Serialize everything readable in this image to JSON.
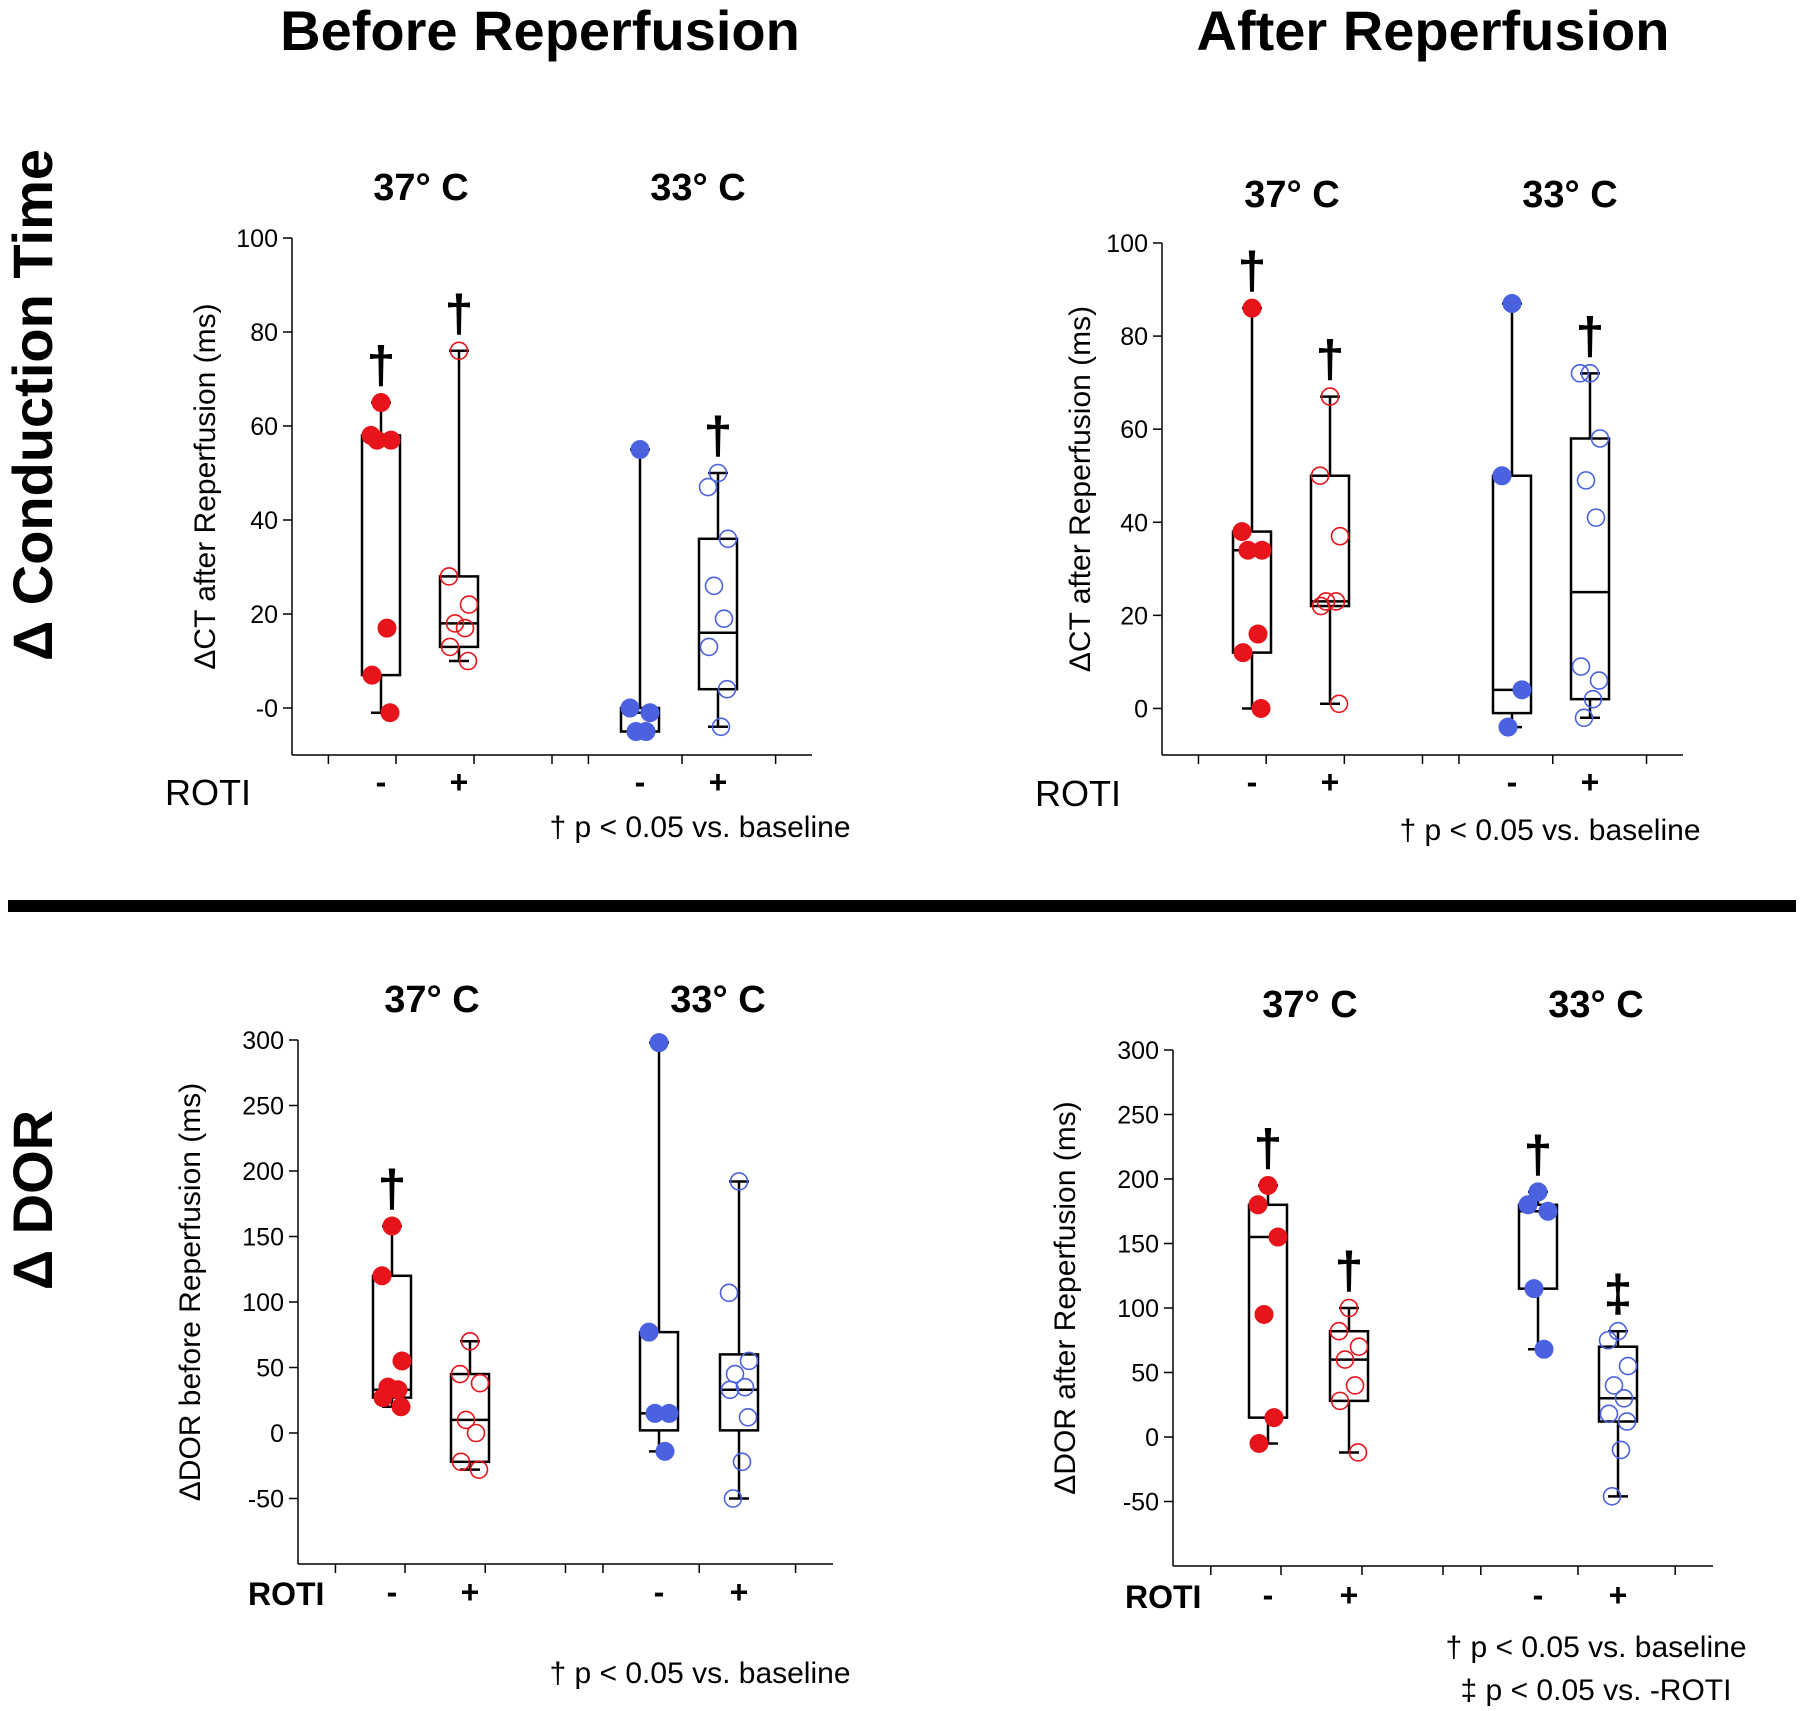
{
  "titles": {
    "before": "Before Reperfusion",
    "after": "After Reperfusion"
  },
  "row_labels": {
    "ct": "Δ Conduction Time",
    "dor": "Δ DOR"
  },
  "legend": {
    "dagger": "† p < 0.05 vs. baseline",
    "ddagger": "‡ p < 0.05 vs. -ROTI"
  },
  "colors": {
    "warm": "#e8141b",
    "cold": "#4a62e0",
    "line": "#000000"
  },
  "chart_data": [
    {
      "type": "box",
      "name": "ct-before",
      "ylabel": "ΔCT after Reperfusion (ms)",
      "ylim": [
        -10,
        100
      ],
      "yticks": [
        "-0",
        "20",
        "40",
        "60",
        "80",
        "100"
      ],
      "groups": [
        "37° C",
        "33° C"
      ],
      "xlabel": "ROTI",
      "x_tick_labels": [
        "-",
        "+",
        "-",
        "+"
      ],
      "footnote": "† p < 0.05 vs. baseline",
      "series": [
        {
          "name": "37° C -ROTI",
          "temp": "37",
          "roti": "-",
          "filled": true,
          "box": {
            "min": -1,
            "q1": 7,
            "median": 57,
            "q3": 58,
            "max": 65
          },
          "points": [
            65,
            58,
            57,
            57,
            17,
            7,
            -1
          ],
          "mark": "†"
        },
        {
          "name": "37° C +ROTI",
          "temp": "37",
          "roti": "+",
          "filled": false,
          "box": {
            "min": 10,
            "q1": 13,
            "median": 18,
            "q3": 28,
            "max": 76
          },
          "points": [
            76,
            28,
            22,
            18,
            17,
            13,
            10
          ],
          "mark": "†"
        },
        {
          "name": "33° C -ROTI",
          "temp": "33",
          "roti": "-",
          "filled": true,
          "box": {
            "min": -5,
            "q1": -5,
            "median": -1,
            "q3": 0,
            "max": 55
          },
          "points": [
            55,
            0,
            -1,
            -5,
            -5
          ],
          "mark": ""
        },
        {
          "name": "33° C +ROTI",
          "temp": "33",
          "roti": "+",
          "filled": false,
          "box": {
            "min": -4,
            "q1": 4,
            "median": 16,
            "q3": 36,
            "max": 50
          },
          "points": [
            50,
            47,
            36,
            26,
            19,
            13,
            4,
            -4
          ],
          "mark": "†"
        }
      ]
    },
    {
      "type": "box",
      "name": "ct-after",
      "ylabel": "ΔCT after Reperfusion (ms)",
      "ylim": [
        -10,
        100
      ],
      "yticks": [
        "0",
        "20",
        "40",
        "60",
        "80",
        "100"
      ],
      "groups": [
        "37° C",
        "33° C"
      ],
      "xlabel": "ROTI",
      "x_tick_labels": [
        "-",
        "+",
        "-",
        "+"
      ],
      "footnote": "† p < 0.05 vs. baseline",
      "series": [
        {
          "name": "37° C -ROTI",
          "temp": "37",
          "roti": "-",
          "filled": true,
          "box": {
            "min": 0,
            "q1": 12,
            "median": 34,
            "q3": 38,
            "max": 86
          },
          "points": [
            86,
            38,
            34,
            34,
            16,
            12,
            0
          ],
          "mark": "†"
        },
        {
          "name": "37° C +ROTI",
          "temp": "37",
          "roti": "+",
          "filled": false,
          "box": {
            "min": 1,
            "q1": 22,
            "median": 23,
            "q3": 50,
            "max": 67
          },
          "points": [
            67,
            50,
            37,
            23,
            23,
            22,
            1
          ],
          "mark": "†"
        },
        {
          "name": "33° C -ROTI",
          "temp": "33",
          "roti": "-",
          "filled": true,
          "box": {
            "min": -4,
            "q1": -1,
            "median": 4,
            "q3": 50,
            "max": 87
          },
          "points": [
            87,
            50,
            4,
            -4
          ],
          "mark": ""
        },
        {
          "name": "33° C +ROTI",
          "temp": "33",
          "roti": "+",
          "filled": false,
          "box": {
            "min": -2,
            "q1": 2,
            "median": 25,
            "q3": 58,
            "max": 72
          },
          "points": [
            72,
            72,
            58,
            49,
            41,
            9,
            6,
            2,
            -2
          ],
          "mark": "†"
        }
      ]
    },
    {
      "type": "box",
      "name": "dor-before",
      "ylabel": "ΔDOR before Reperfusion (ms)",
      "ylim": [
        -100,
        300
      ],
      "yticks": [
        "-50",
        "0",
        "50",
        "100",
        "150",
        "200",
        "250",
        "300"
      ],
      "groups": [
        "37° C",
        "33° C"
      ],
      "xlabel": "ROTI",
      "x_tick_labels": [
        "-",
        "+",
        "-",
        "+"
      ],
      "footnote": "† p < 0.05 vs. baseline",
      "series": [
        {
          "name": "37° C -ROTI",
          "temp": "37",
          "roti": "-",
          "filled": true,
          "box": {
            "min": 20,
            "q1": 27,
            "median": 33,
            "q3": 120,
            "max": 158
          },
          "points": [
            158,
            120,
            55,
            35,
            33,
            27,
            20
          ],
          "mark": "†"
        },
        {
          "name": "37° C +ROTI",
          "temp": "37",
          "roti": "+",
          "filled": false,
          "box": {
            "min": -28,
            "q1": -22,
            "median": 10,
            "q3": 45,
            "max": 70
          },
          "points": [
            70,
            45,
            38,
            10,
            0,
            -22,
            -28
          ],
          "mark": ""
        },
        {
          "name": "33° C -ROTI",
          "temp": "33",
          "roti": "-",
          "filled": true,
          "box": {
            "min": -14,
            "q1": 2,
            "median": 15,
            "q3": 77,
            "max": 298
          },
          "points": [
            298,
            77,
            15,
            15,
            -14
          ],
          "mark": ""
        },
        {
          "name": "33° C +ROTI",
          "temp": "33",
          "roti": "+",
          "filled": false,
          "box": {
            "min": -50,
            "q1": 2,
            "median": 33,
            "q3": 60,
            "max": 192
          },
          "points": [
            192,
            107,
            55,
            45,
            35,
            33,
            12,
            -22,
            -50
          ],
          "mark": ""
        }
      ]
    },
    {
      "type": "box",
      "name": "dor-after",
      "ylabel": "ΔDOR after Reperfusion (ms)",
      "ylim": [
        -100,
        300
      ],
      "yticks": [
        "-50",
        "0",
        "50",
        "100",
        "150",
        "200",
        "250",
        "300"
      ],
      "groups": [
        "37° C",
        "33° C"
      ],
      "xlabel": "ROTI",
      "x_tick_labels": [
        "-",
        "+",
        "-",
        "+"
      ],
      "footnote": "† p < 0.05 vs. baseline",
      "footnote2": "‡ p < 0.05 vs. -ROTI",
      "series": [
        {
          "name": "37° C -ROTI",
          "temp": "37",
          "roti": "-",
          "filled": true,
          "box": {
            "min": -5,
            "q1": 15,
            "median": 155,
            "q3": 180,
            "max": 195
          },
          "points": [
            195,
            180,
            155,
            95,
            15,
            -5
          ],
          "mark": "†"
        },
        {
          "name": "37° C +ROTI",
          "temp": "37",
          "roti": "+",
          "filled": false,
          "box": {
            "min": -12,
            "q1": 28,
            "median": 60,
            "q3": 82,
            "max": 100
          },
          "points": [
            100,
            82,
            70,
            60,
            40,
            28,
            -12
          ],
          "mark": "†"
        },
        {
          "name": "33° C -ROTI",
          "temp": "33",
          "roti": "-",
          "filled": true,
          "box": {
            "min": 68,
            "q1": 115,
            "median": 175,
            "q3": 180,
            "max": 190
          },
          "points": [
            190,
            180,
            175,
            115,
            68
          ],
          "mark": "†"
        },
        {
          "name": "33° C +ROTI",
          "temp": "33",
          "roti": "+",
          "filled": false,
          "box": {
            "min": -46,
            "q1": 12,
            "median": 30,
            "q3": 70,
            "max": 82
          },
          "points": [
            82,
            75,
            55,
            40,
            30,
            18,
            12,
            -10,
            -46
          ],
          "mark": "‡"
        }
      ]
    }
  ]
}
